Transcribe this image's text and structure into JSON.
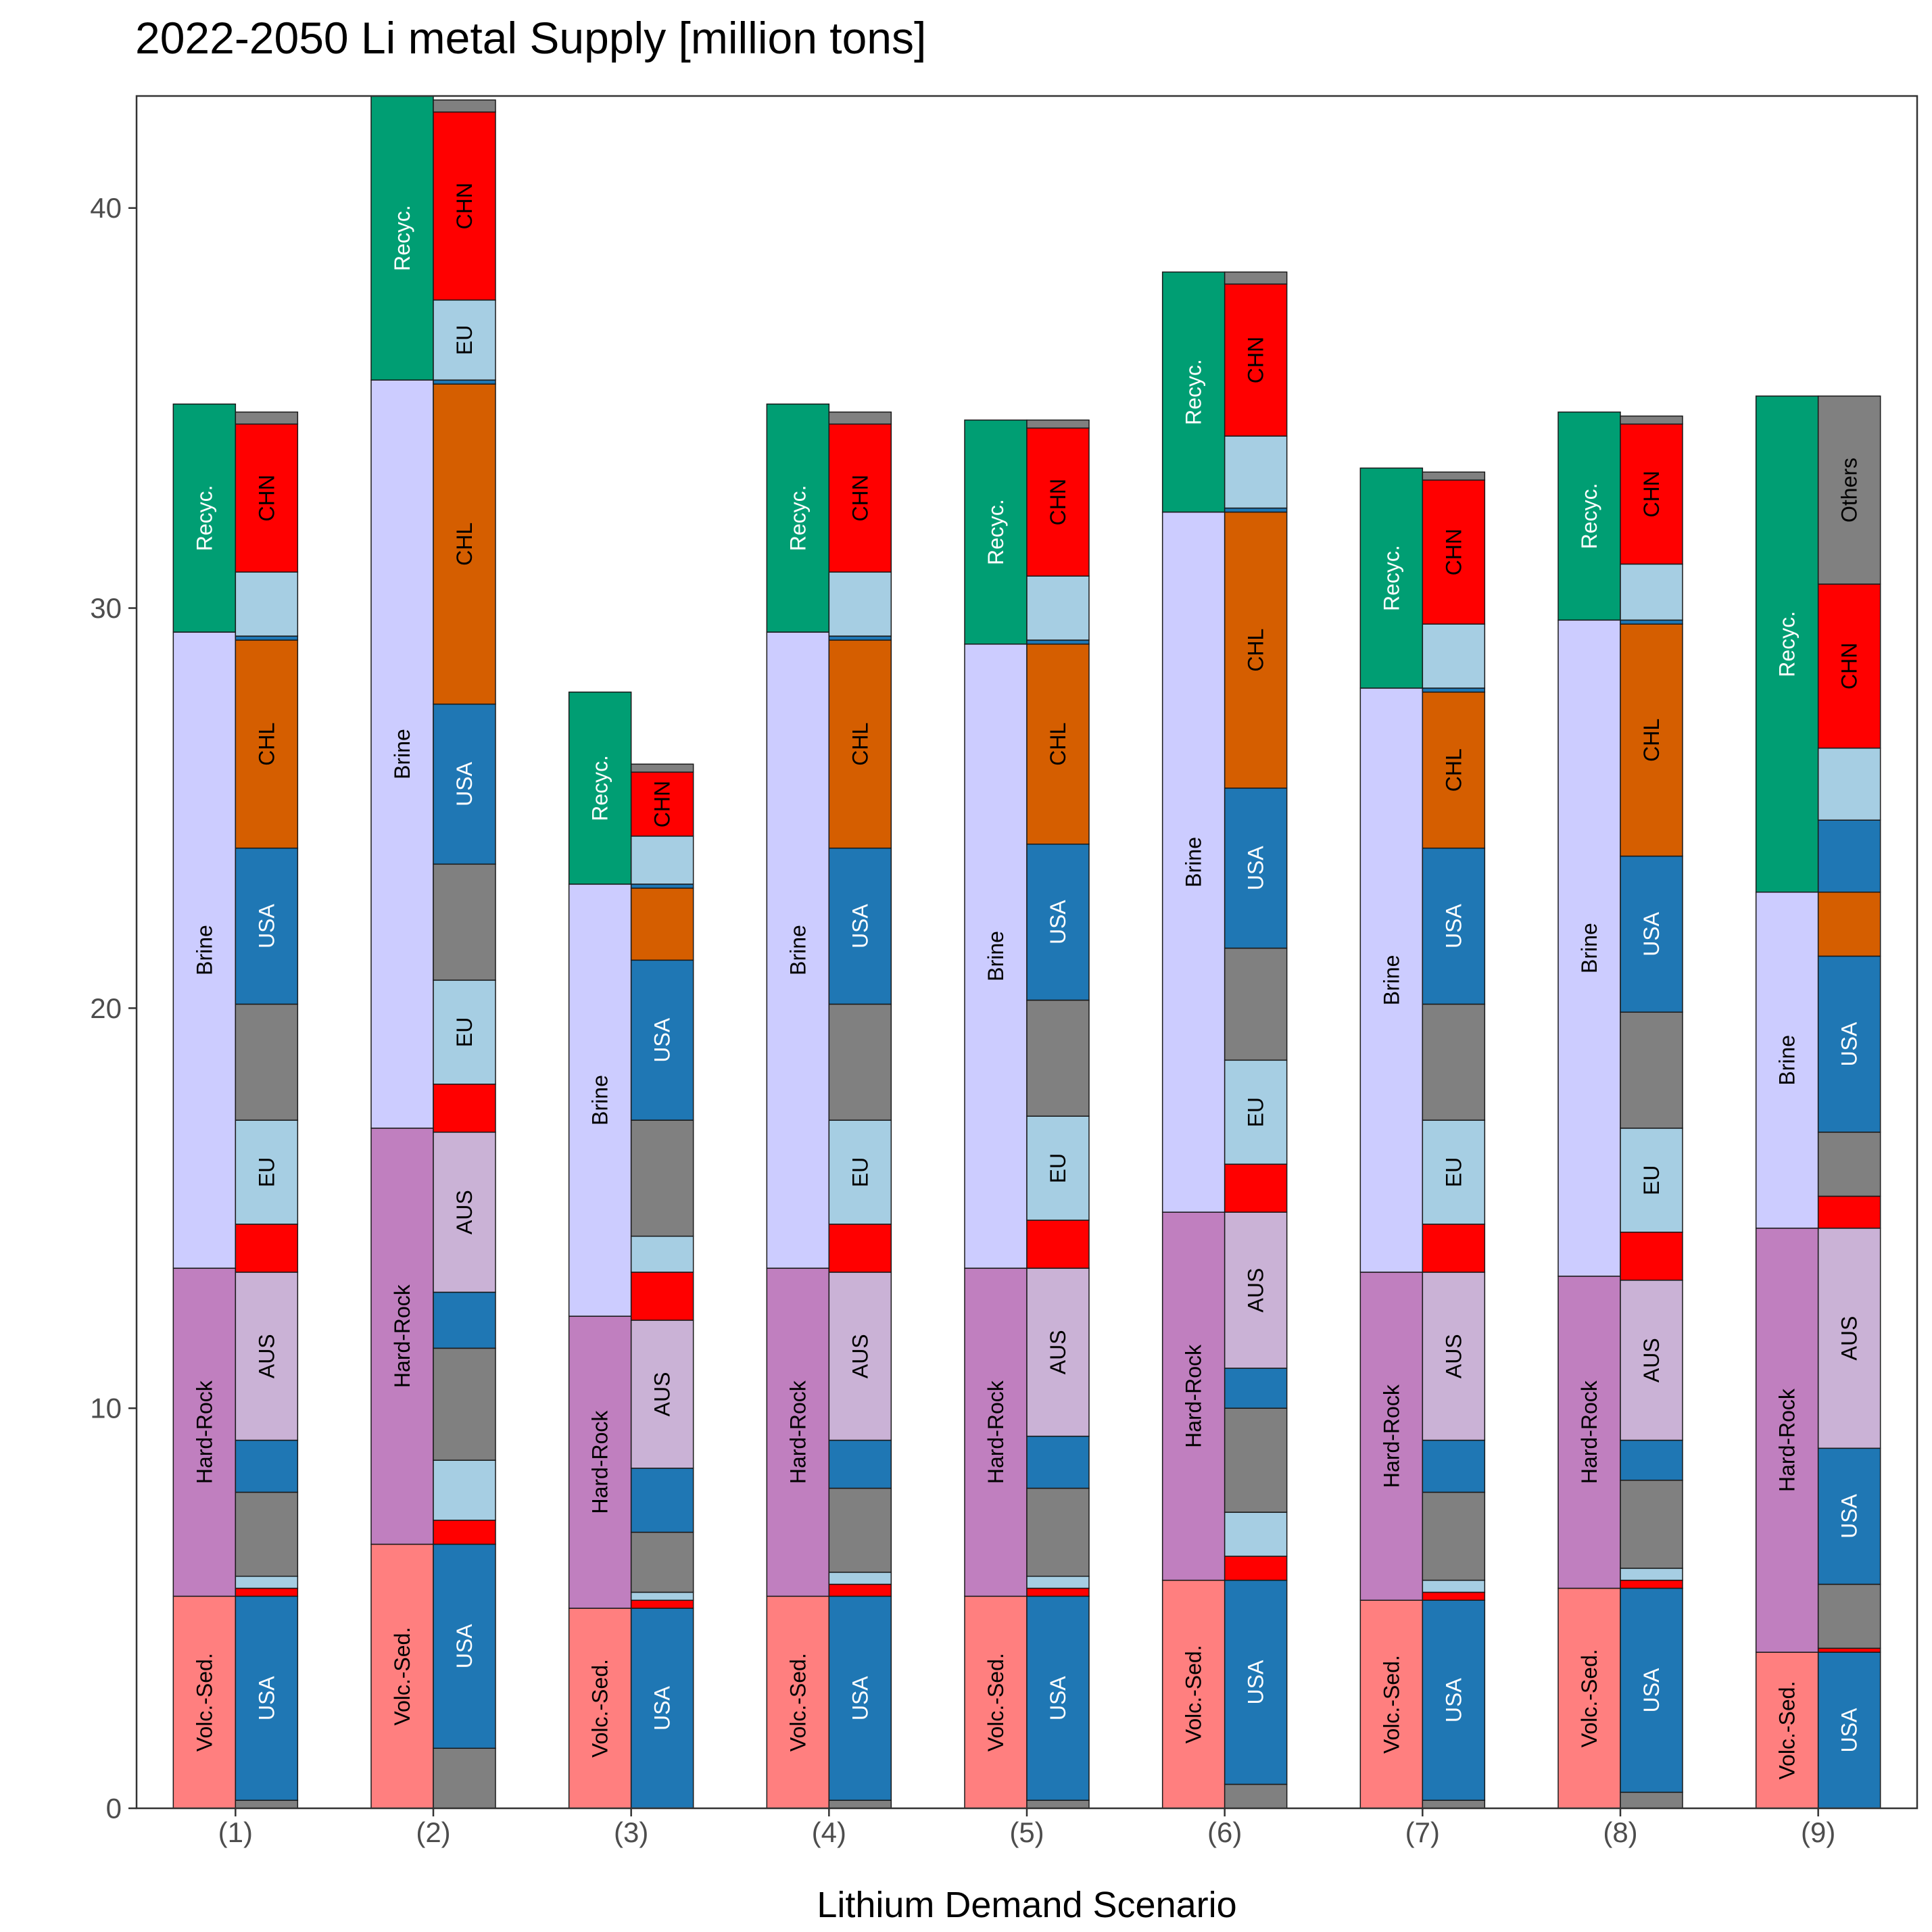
{
  "chart_data": {
    "type": "bar",
    "stacked": true,
    "title": "2022-2050 Li metal Supply [million tons]",
    "xlabel": "Lithium Demand Scenario",
    "ylabel": "",
    "ylim": [
      0,
      42.8
    ],
    "yticks": [
      0,
      10,
      20,
      30,
      40
    ],
    "grid": false,
    "legend": "none",
    "categories": [
      "(1)",
      "(2)",
      "(3)",
      "(4)",
      "(5)",
      "(6)",
      "(7)",
      "(8)",
      "(9)"
    ],
    "colors": {
      "Volc.-Sed.": "#ff7f7f",
      "Hard-Rock": "#c07fbf",
      "Brine": "#ccccff",
      "Recyc.": "#009e73",
      "USA": "#1f77b4",
      "EU": "#a6cee3",
      "AUS": "#cab2d6",
      "CHL": "#d55e00",
      "CHN": "#ff0000",
      "Others": "#808080",
      "other": "#808080"
    },
    "deposit_type_bars": [
      {
        "category": "(1)",
        "segments": [
          {
            "name": "Volc.-Sed.",
            "value": 5.3
          },
          {
            "name": "Hard-Rock",
            "value": 8.2
          },
          {
            "name": "Brine",
            "value": 15.9
          },
          {
            "name": "Recyc.",
            "value": 5.7
          }
        ]
      },
      {
        "category": "(2)",
        "segments": [
          {
            "name": "Volc.-Sed.",
            "value": 6.6
          },
          {
            "name": "Hard-Rock",
            "value": 10.4
          },
          {
            "name": "Brine",
            "value": 18.7
          },
          {
            "name": "Recyc.",
            "value": 7.1
          }
        ]
      },
      {
        "category": "(3)",
        "segments": [
          {
            "name": "Volc.-Sed.",
            "value": 5.0
          },
          {
            "name": "Hard-Rock",
            "value": 7.3
          },
          {
            "name": "Brine",
            "value": 10.8
          },
          {
            "name": "Recyc.",
            "value": 4.8
          }
        ]
      },
      {
        "category": "(4)",
        "segments": [
          {
            "name": "Volc.-Sed.",
            "value": 5.3
          },
          {
            "name": "Hard-Rock",
            "value": 8.2
          },
          {
            "name": "Brine",
            "value": 15.9
          },
          {
            "name": "Recyc.",
            "value": 5.7
          }
        ]
      },
      {
        "category": "(5)",
        "segments": [
          {
            "name": "Volc.-Sed.",
            "value": 5.3
          },
          {
            "name": "Hard-Rock",
            "value": 8.2
          },
          {
            "name": "Brine",
            "value": 15.6
          },
          {
            "name": "Recyc.",
            "value": 5.6
          }
        ]
      },
      {
        "category": "(6)",
        "segments": [
          {
            "name": "Volc.-Sed.",
            "value": 5.7
          },
          {
            "name": "Hard-Rock",
            "value": 9.2
          },
          {
            "name": "Brine",
            "value": 17.5
          },
          {
            "name": "Recyc.",
            "value": 6.0
          }
        ]
      },
      {
        "category": "(7)",
        "segments": [
          {
            "name": "Volc.-Sed.",
            "value": 5.2
          },
          {
            "name": "Hard-Rock",
            "value": 8.2
          },
          {
            "name": "Brine",
            "value": 14.6
          },
          {
            "name": "Recyc.",
            "value": 5.5
          }
        ]
      },
      {
        "category": "(8)",
        "segments": [
          {
            "name": "Volc.-Sed.",
            "value": 5.5
          },
          {
            "name": "Hard-Rock",
            "value": 7.8
          },
          {
            "name": "Brine",
            "value": 16.4
          },
          {
            "name": "Recyc.",
            "value": 5.2
          }
        ]
      },
      {
        "category": "(9)",
        "segments": [
          {
            "name": "Volc.-Sed.",
            "value": 3.9
          },
          {
            "name": "Hard-Rock",
            "value": 10.6
          },
          {
            "name": "Brine",
            "value": 8.4
          },
          {
            "name": "Recyc.",
            "value": 12.4
          }
        ]
      }
    ],
    "country_bars": [
      {
        "category": "(1)",
        "segments": [
          {
            "name": "other",
            "value": 0.2
          },
          {
            "name": "USA",
            "value": 5.1,
            "label": "USA"
          },
          {
            "name": "CHN",
            "value": 0.2
          },
          {
            "name": "EU",
            "value": 0.3
          },
          {
            "name": "other",
            "value": 2.1
          },
          {
            "name": "USA",
            "value": 1.3
          },
          {
            "name": "AUS",
            "value": 4.2,
            "label": "AUS"
          },
          {
            "name": "CHN",
            "value": 1.2
          },
          {
            "name": "EU",
            "value": 2.6,
            "label": "EU"
          },
          {
            "name": "other",
            "value": 2.9
          },
          {
            "name": "USA",
            "value": 3.9,
            "label": "USA"
          },
          {
            "name": "CHL",
            "value": 5.2,
            "label": "CHL"
          },
          {
            "name": "USA",
            "value": 0.1
          },
          {
            "name": "EU",
            "value": 1.6
          },
          {
            "name": "CHN",
            "value": 3.7,
            "label": "CHN"
          },
          {
            "name": "other",
            "value": 0.3
          }
        ]
      },
      {
        "category": "(2)",
        "segments": [
          {
            "name": "other",
            "value": 1.5
          },
          {
            "name": "USA",
            "value": 5.1,
            "label": "USA"
          },
          {
            "name": "CHN",
            "value": 0.6
          },
          {
            "name": "EU",
            "value": 1.5
          },
          {
            "name": "other",
            "value": 2.8
          },
          {
            "name": "USA",
            "value": 1.4
          },
          {
            "name": "AUS",
            "value": 4.0,
            "label": "AUS"
          },
          {
            "name": "CHN",
            "value": 1.2
          },
          {
            "name": "EU",
            "value": 2.6,
            "label": "EU"
          },
          {
            "name": "other",
            "value": 2.9
          },
          {
            "name": "USA",
            "value": 4.0,
            "label": "USA"
          },
          {
            "name": "CHL",
            "value": 8.0,
            "label": "CHL"
          },
          {
            "name": "USA",
            "value": 0.1
          },
          {
            "name": "EU",
            "value": 2.0,
            "label": "EU"
          },
          {
            "name": "CHN",
            "value": 4.7,
            "label": "CHN"
          },
          {
            "name": "other",
            "value": 0.3
          }
        ]
      },
      {
        "category": "(3)",
        "segments": [
          {
            "name": "other",
            "value": 0.0
          },
          {
            "name": "USA",
            "value": 5.0,
            "label": "USA"
          },
          {
            "name": "CHN",
            "value": 0.2
          },
          {
            "name": "EU",
            "value": 0.2
          },
          {
            "name": "other",
            "value": 1.5
          },
          {
            "name": "USA",
            "value": 1.6
          },
          {
            "name": "AUS",
            "value": 3.7,
            "label": "AUS"
          },
          {
            "name": "CHN",
            "value": 1.2
          },
          {
            "name": "EU",
            "value": 0.9
          },
          {
            "name": "other",
            "value": 2.9
          },
          {
            "name": "USA",
            "value": 4.0,
            "label": "USA"
          },
          {
            "name": "CHL",
            "value": 1.8
          },
          {
            "name": "USA",
            "value": 0.1
          },
          {
            "name": "EU",
            "value": 1.2
          },
          {
            "name": "CHN",
            "value": 1.6,
            "label": "CHN"
          },
          {
            "name": "other",
            "value": 0.2
          }
        ]
      },
      {
        "category": "(4)",
        "segments": [
          {
            "name": "other",
            "value": 0.2
          },
          {
            "name": "USA",
            "value": 5.1,
            "label": "USA"
          },
          {
            "name": "CHN",
            "value": 0.3
          },
          {
            "name": "EU",
            "value": 0.3
          },
          {
            "name": "other",
            "value": 2.1
          },
          {
            "name": "USA",
            "value": 1.2
          },
          {
            "name": "AUS",
            "value": 4.2,
            "label": "AUS"
          },
          {
            "name": "CHN",
            "value": 1.2
          },
          {
            "name": "EU",
            "value": 2.6,
            "label": "EU"
          },
          {
            "name": "other",
            "value": 2.9
          },
          {
            "name": "USA",
            "value": 3.9,
            "label": "USA"
          },
          {
            "name": "CHL",
            "value": 5.2,
            "label": "CHL"
          },
          {
            "name": "USA",
            "value": 0.1
          },
          {
            "name": "EU",
            "value": 1.6
          },
          {
            "name": "CHN",
            "value": 3.7,
            "label": "CHN"
          },
          {
            "name": "other",
            "value": 0.3
          }
        ]
      },
      {
        "category": "(5)",
        "segments": [
          {
            "name": "other",
            "value": 0.2
          },
          {
            "name": "USA",
            "value": 5.1,
            "label": "USA"
          },
          {
            "name": "CHN",
            "value": 0.2
          },
          {
            "name": "EU",
            "value": 0.3
          },
          {
            "name": "other",
            "value": 2.2
          },
          {
            "name": "USA",
            "value": 1.3
          },
          {
            "name": "AUS",
            "value": 4.2,
            "label": "AUS"
          },
          {
            "name": "CHN",
            "value": 1.2
          },
          {
            "name": "EU",
            "value": 2.6,
            "label": "EU"
          },
          {
            "name": "other",
            "value": 2.9
          },
          {
            "name": "USA",
            "value": 3.9,
            "label": "USA"
          },
          {
            "name": "CHL",
            "value": 5.0,
            "label": "CHL"
          },
          {
            "name": "USA",
            "value": 0.1
          },
          {
            "name": "EU",
            "value": 1.6
          },
          {
            "name": "CHN",
            "value": 3.7,
            "label": "CHN"
          },
          {
            "name": "other",
            "value": 0.2
          }
        ]
      },
      {
        "category": "(6)",
        "segments": [
          {
            "name": "other",
            "value": 0.6
          },
          {
            "name": "USA",
            "value": 5.1,
            "label": "USA"
          },
          {
            "name": "CHN",
            "value": 0.6
          },
          {
            "name": "EU",
            "value": 1.1
          },
          {
            "name": "other",
            "value": 2.6
          },
          {
            "name": "USA",
            "value": 1.0
          },
          {
            "name": "AUS",
            "value": 3.9,
            "label": "AUS"
          },
          {
            "name": "CHN",
            "value": 1.2
          },
          {
            "name": "EU",
            "value": 2.6,
            "label": "EU"
          },
          {
            "name": "other",
            "value": 2.8
          },
          {
            "name": "USA",
            "value": 4.0,
            "label": "USA"
          },
          {
            "name": "CHL",
            "value": 6.9,
            "label": "CHL"
          },
          {
            "name": "USA",
            "value": 0.1
          },
          {
            "name": "EU",
            "value": 1.8
          },
          {
            "name": "CHN",
            "value": 3.8,
            "label": "CHN"
          },
          {
            "name": "other",
            "value": 0.3
          }
        ]
      },
      {
        "category": "(7)",
        "segments": [
          {
            "name": "other",
            "value": 0.2
          },
          {
            "name": "USA",
            "value": 5.0,
            "label": "USA"
          },
          {
            "name": "CHN",
            "value": 0.2
          },
          {
            "name": "EU",
            "value": 0.3
          },
          {
            "name": "other",
            "value": 2.2
          },
          {
            "name": "USA",
            "value": 1.3
          },
          {
            "name": "AUS",
            "value": 4.2,
            "label": "AUS"
          },
          {
            "name": "CHN",
            "value": 1.2
          },
          {
            "name": "EU",
            "value": 2.6,
            "label": "EU"
          },
          {
            "name": "other",
            "value": 2.9
          },
          {
            "name": "USA",
            "value": 3.9,
            "label": "USA"
          },
          {
            "name": "CHL",
            "value": 3.9,
            "label": "CHL"
          },
          {
            "name": "USA",
            "value": 0.1
          },
          {
            "name": "EU",
            "value": 1.6
          },
          {
            "name": "CHN",
            "value": 3.6,
            "label": "CHN"
          },
          {
            "name": "other",
            "value": 0.2
          }
        ]
      },
      {
        "category": "(8)",
        "segments": [
          {
            "name": "other",
            "value": 0.4
          },
          {
            "name": "USA",
            "value": 5.1,
            "label": "USA"
          },
          {
            "name": "CHN",
            "value": 0.2
          },
          {
            "name": "EU",
            "value": 0.3
          },
          {
            "name": "other",
            "value": 2.2
          },
          {
            "name": "USA",
            "value": 1.0
          },
          {
            "name": "AUS",
            "value": 4.0,
            "label": "AUS"
          },
          {
            "name": "CHN",
            "value": 1.2
          },
          {
            "name": "EU",
            "value": 2.6,
            "label": "EU"
          },
          {
            "name": "other",
            "value": 2.9
          },
          {
            "name": "USA",
            "value": 3.9,
            "label": "USA"
          },
          {
            "name": "CHL",
            "value": 5.8,
            "label": "CHL"
          },
          {
            "name": "USA",
            "value": 0.1
          },
          {
            "name": "EU",
            "value": 1.4
          },
          {
            "name": "CHN",
            "value": 3.5,
            "label": "CHN"
          },
          {
            "name": "other",
            "value": 0.2
          }
        ]
      },
      {
        "category": "(9)",
        "segments": [
          {
            "name": "USA",
            "value": 3.9,
            "label": "USA"
          },
          {
            "name": "CHN",
            "value": 0.1
          },
          {
            "name": "other",
            "value": 1.6
          },
          {
            "name": "USA",
            "value": 3.4,
            "label": "USA"
          },
          {
            "name": "AUS",
            "value": 5.5,
            "label": "AUS"
          },
          {
            "name": "CHN",
            "value": 0.8
          },
          {
            "name": "other",
            "value": 1.6
          },
          {
            "name": "USA",
            "value": 4.4,
            "label": "USA"
          },
          {
            "name": "CHL",
            "value": 1.6
          },
          {
            "name": "USA",
            "value": 1.8
          },
          {
            "name": "EU",
            "value": 1.8
          },
          {
            "name": "CHN",
            "value": 4.1,
            "label": "CHN"
          },
          {
            "name": "Others",
            "value": 4.7,
            "label": "Others"
          }
        ]
      }
    ]
  }
}
